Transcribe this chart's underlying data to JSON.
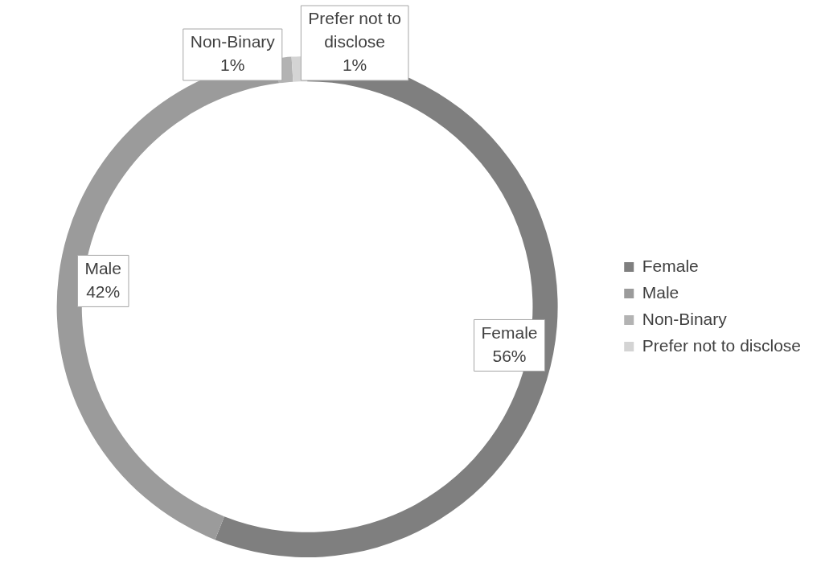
{
  "chart_data": {
    "type": "donut",
    "categories": [
      "Female",
      "Male",
      "Non-Binary",
      "Prefer not to disclose"
    ],
    "values": [
      56,
      42,
      1,
      1
    ],
    "value_labels": [
      "56%",
      "42%",
      "1%",
      "1%"
    ],
    "colors": [
      "#7f7f7f",
      "#9b9b9b",
      "#b3b3b3",
      "#d4d4d4"
    ],
    "legend": "right"
  }
}
